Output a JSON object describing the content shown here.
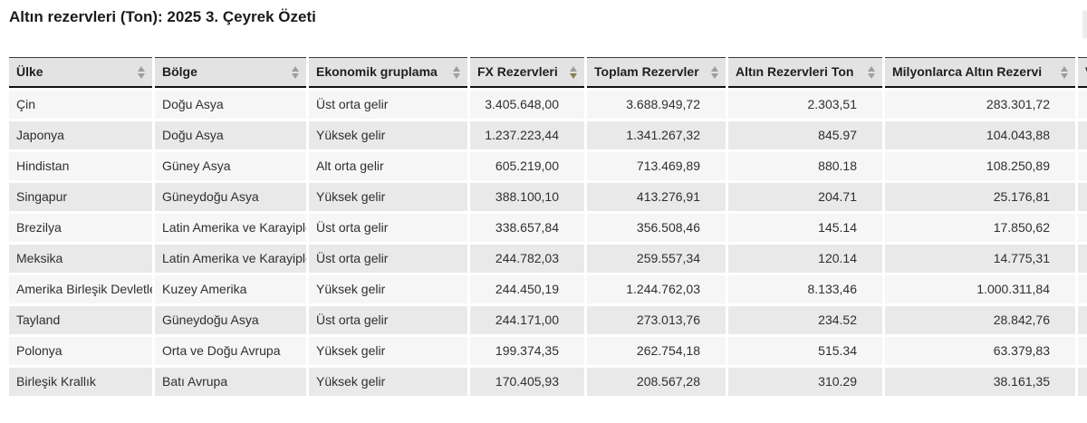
{
  "page": {
    "title": "Altın rezervleri (Ton): 2025 3. Çeyrek Özeti"
  },
  "table": {
    "columns": [
      {
        "key": "ulke",
        "label": "Ülke",
        "align": "left",
        "sort": "none"
      },
      {
        "key": "bolge",
        "label": "Bölge",
        "align": "left",
        "sort": "none"
      },
      {
        "key": "ekonomik-gruplama",
        "label": "Ekonomik gruplama",
        "align": "left",
        "sort": "none"
      },
      {
        "key": "fx-rezervleri",
        "label": "FX Rezervleri",
        "align": "right",
        "sort": "desc"
      },
      {
        "key": "toplam-rezervler",
        "label": "Toplam Rezervler",
        "align": "right",
        "sort": "none"
      },
      {
        "key": "altin-rezervleri-ton",
        "label": "Altın Rezervleri Ton",
        "align": "right",
        "sort": "none"
      },
      {
        "key": "milyonlarca-altin-rezervi",
        "label": "Milyonlarca Altın Rezervi",
        "align": "right",
        "sort": "none"
      },
      {
        "key": "clipped-column",
        "label": "V",
        "align": "left",
        "sort": "none",
        "clipped": true
      }
    ],
    "rows": [
      [
        "Çin",
        "Doğu Asya",
        "Üst orta gelir",
        "3.405.648,00",
        "3.688.949,72",
        "2.303,51",
        "283.301,72",
        ""
      ],
      [
        "Japonya",
        "Doğu Asya",
        "Yüksek gelir",
        "1.237.223,44",
        "1.341.267,32",
        "845.97",
        "104.043,88",
        ""
      ],
      [
        "Hindistan",
        "Güney Asya",
        "Alt orta gelir",
        "605.219,00",
        "713.469,89",
        "880.18",
        "108.250,89",
        ""
      ],
      [
        "Singapur",
        "Güneydoğu Asya",
        "Yüksek gelir",
        "388.100,10",
        "413.276,91",
        "204.71",
        "25.176,81",
        ""
      ],
      [
        "Brezilya",
        "Latin Amerika ve Karayipler",
        "Üst orta gelir",
        "338.657,84",
        "356.508,46",
        "145.14",
        "17.850,62",
        ""
      ],
      [
        "Meksika",
        "Latin Amerika ve Karayipler",
        "Üst orta gelir",
        "244.782,03",
        "259.557,34",
        "120.14",
        "14.775,31",
        ""
      ],
      [
        "Amerika Birleşik Devletleri",
        "Kuzey Amerika",
        "Yüksek gelir",
        "244.450,19",
        "1.244.762,03",
        "8.133,46",
        "1.000.311,84",
        ""
      ],
      [
        "Tayland",
        "Güneydoğu Asya",
        "Üst orta gelir",
        "244.171,00",
        "273.013,76",
        "234.52",
        "28.842,76",
        ""
      ],
      [
        "Polonya",
        "Orta ve Doğu Avrupa",
        "Yüksek gelir",
        "199.374,35",
        "262.754,18",
        "515.34",
        "63.379,83",
        ""
      ],
      [
        "Birleşik Krallık",
        "Batı Avrupa",
        "Yüksek gelir",
        "170.405,93",
        "208.567,28",
        "310.29",
        "38.161,35",
        ""
      ]
    ]
  },
  "colors": {
    "header_bg": "#e3e3e3",
    "row_odd_bg": "#f6f6f6",
    "row_even_bg": "#e9e9e9",
    "header_border_bottom": "#111111",
    "sort_arrow_inactive": "#9d9d9d",
    "sort_arrow_active": "#8a7d4f"
  }
}
